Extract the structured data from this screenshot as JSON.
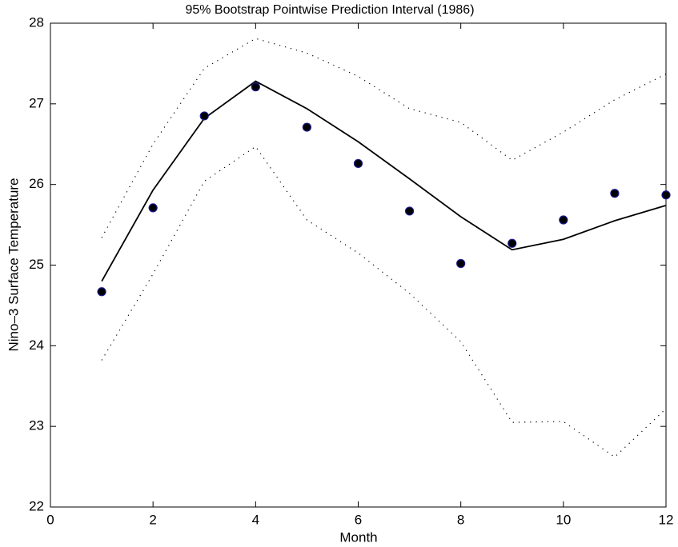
{
  "chart_data": {
    "type": "line",
    "title": "95% Bootstrap Pointwise Prediction Interval (1986)",
    "x_label": "Month",
    "y_label": "Nino–3 Surface Temperature",
    "x": [
      1,
      2,
      3,
      4,
      5,
      6,
      7,
      8,
      9,
      10,
      11,
      12
    ],
    "series": [
      {
        "color": "#000000",
        "style": "dotted",
        "values": [
          25.34,
          26.5,
          27.44,
          27.81,
          27.63,
          27.34,
          26.94,
          26.77,
          26.3,
          26.65,
          27.05,
          27.37
        ]
      },
      {
        "color": "#000000",
        "style": "dotted",
        "values": [
          23.82,
          24.89,
          26.04,
          26.47,
          25.56,
          25.15,
          24.65,
          24.05,
          23.05,
          23.06,
          22.62,
          23.22
        ]
      },
      {
        "color": "#000000",
        "style": "solid",
        "values": [
          24.8,
          25.93,
          26.82,
          27.28,
          26.94,
          26.53,
          26.07,
          25.6,
          25.19,
          25.32,
          25.55,
          25.74
        ]
      },
      {
        "color": "#000000",
        "edge_color": "#1a1a8c",
        "style": "markers",
        "values": [
          24.67,
          25.71,
          26.85,
          27.21,
          26.71,
          26.26,
          25.67,
          25.02,
          25.27,
          25.56,
          25.89,
          25.87
        ]
      }
    ],
    "xlim": [
      0,
      12
    ],
    "xticks": [
      0,
      2,
      4,
      6,
      8,
      10,
      12
    ],
    "ylim": [
      22,
      28
    ],
    "yticks": [
      22,
      23,
      24,
      25,
      26,
      27,
      28
    ],
    "grid": false
  }
}
